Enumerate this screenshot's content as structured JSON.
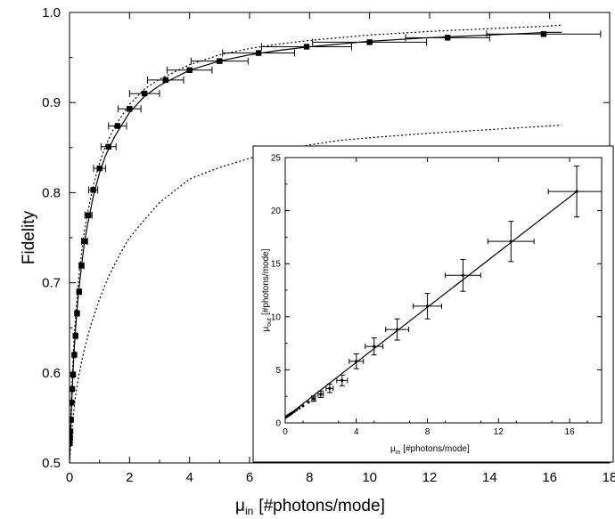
{
  "chart_data": [
    {
      "type": "scatter",
      "xlabel": "μ",
      "xlabel_sub": "in",
      "xlabel_rest": "[#photons/mode]",
      "ylabel": "Fidelity",
      "xlim": [
        0,
        18
      ],
      "ylim": [
        0.5,
        1.0
      ],
      "x_ticks": [
        "0",
        "2",
        "4",
        "6",
        "8",
        "10",
        "12",
        "14",
        "16",
        "18"
      ],
      "y_ticks": [
        "0.5",
        "0.6",
        "0.7",
        "0.8",
        "0.9",
        "1.0"
      ],
      "grid": false,
      "series": [
        {
          "kind": "points",
          "style": "filled-square",
          "x": [
            0.01,
            0.02,
            0.03,
            0.05,
            0.07,
            0.09,
            0.12,
            0.16,
            0.2,
            0.25,
            0.32,
            0.4,
            0.5,
            0.63,
            0.79,
            1.0,
            1.3,
            1.6,
            2.0,
            2.5,
            3.2,
            4.0,
            5.0,
            6.3,
            7.9,
            10.0,
            12.6,
            15.8
          ],
          "y": [
            0.522,
            0.528,
            0.535,
            0.548,
            0.567,
            0.582,
            0.598,
            0.62,
            0.641,
            0.666,
            0.69,
            0.719,
            0.746,
            0.775,
            0.803,
            0.827,
            0.851,
            0.874,
            0.893,
            0.91,
            0.925,
            0.936,
            0.946,
            0.955,
            0.962,
            0.967,
            0.972,
            0.976
          ],
          "xerr": [
            0.002,
            0.004,
            0.006,
            0.01,
            0.014,
            0.018,
            0.024,
            0.03,
            0.04,
            0.05,
            0.06,
            0.08,
            0.1,
            0.12,
            0.15,
            0.2,
            0.25,
            0.3,
            0.38,
            0.5,
            0.6,
            0.75,
            0.95,
            1.2,
            1.5,
            1.9,
            1.4,
            1.9
          ]
        },
        {
          "kind": "line",
          "style": "solid",
          "x": [
            0,
            0.05,
            0.1,
            0.15,
            0.2,
            0.3,
            0.4,
            0.5,
            0.6,
            0.8,
            1.0,
            1.2,
            1.5,
            2.0,
            2.5,
            3.0,
            4.0,
            5.0,
            6.0,
            7.0,
            8.0,
            10.0,
            12.0,
            14.0,
            16.0,
            16.4
          ],
          "y": [
            0.5,
            0.548,
            0.59,
            0.622,
            0.648,
            0.689,
            0.719,
            0.745,
            0.764,
            0.797,
            0.822,
            0.841,
            0.862,
            0.889,
            0.907,
            0.919,
            0.936,
            0.946,
            0.953,
            0.958,
            0.962,
            0.968,
            0.972,
            0.975,
            0.978,
            0.978
          ]
        },
        {
          "kind": "line",
          "style": "dotted",
          "x": [
            0,
            0.05,
            0.1,
            0.15,
            0.2,
            0.3,
            0.4,
            0.5,
            0.6,
            0.8,
            1.0,
            1.2,
            1.5,
            2.0,
            2.5,
            3.0,
            4.0,
            5.0,
            6.0,
            7.0,
            8.0,
            10.0,
            12.0,
            14.0,
            16.0,
            16.4
          ],
          "y": [
            0.5,
            0.56,
            0.602,
            0.636,
            0.662,
            0.703,
            0.733,
            0.758,
            0.777,
            0.809,
            0.833,
            0.852,
            0.873,
            0.898,
            0.915,
            0.926,
            0.942,
            0.953,
            0.96,
            0.965,
            0.969,
            0.975,
            0.979,
            0.982,
            0.985,
            0.986
          ]
        },
        {
          "kind": "line",
          "style": "dotted",
          "x": [
            0,
            0.1,
            0.2,
            0.3,
            0.4,
            0.5,
            0.7,
            1.0,
            1.3,
            1.7,
            2.0,
            2.5,
            3.0,
            4.0,
            5.0,
            6.0,
            7.0,
            8.0,
            9.0,
            10.0,
            12.0,
            14.0,
            16.0,
            16.4
          ],
          "y": [
            0.5,
            0.546,
            0.574,
            0.595,
            0.612,
            0.627,
            0.652,
            0.682,
            0.707,
            0.733,
            0.75,
            0.77,
            0.789,
            0.815,
            0.828,
            0.838,
            0.846,
            0.853,
            0.858,
            0.861,
            0.866,
            0.87,
            0.874,
            0.875
          ]
        }
      ]
    },
    {
      "type": "scatter",
      "role": "inset",
      "xlabel": "μ",
      "xlabel_sub": "in",
      "xlabel_rest": "[#photons/mode]",
      "ylabel": "μ",
      "ylabel_sub": "out",
      "ylabel_rest": "[#photons/mode]",
      "xlim": [
        0,
        17.8
      ],
      "ylim": [
        0,
        25
      ],
      "x_ticks": [
        "0",
        "4",
        "8",
        "12",
        "16"
      ],
      "y_ticks": [
        "0",
        "5",
        "10",
        "15",
        "20",
        "25"
      ],
      "series": [
        {
          "kind": "points",
          "style": "small-dot",
          "x": [
            0.01,
            0.02,
            0.03,
            0.05,
            0.07,
            0.09,
            0.12,
            0.16,
            0.2,
            0.25,
            0.32,
            0.4,
            0.5,
            0.63,
            0.79,
            1.0,
            1.3,
            1.6,
            2.0,
            2.5,
            3.2,
            4.0,
            5.0,
            6.3,
            8.0,
            10.0,
            12.7,
            16.4
          ],
          "y": [
            0.52,
            0.53,
            0.55,
            0.57,
            0.59,
            0.61,
            0.64,
            0.69,
            0.73,
            0.79,
            0.86,
            0.95,
            1.06,
            1.2,
            1.38,
            1.6,
            1.95,
            2.28,
            2.7,
            3.25,
            4.0,
            5.8,
            7.2,
            8.8,
            11.0,
            13.9,
            17.1,
            21.8
          ],
          "xerr": [
            0,
            0,
            0,
            0,
            0,
            0,
            0,
            0,
            0,
            0,
            0,
            0,
            0,
            0,
            0,
            0,
            0,
            0.1,
            0.15,
            0.2,
            0.3,
            0.4,
            0.5,
            0.65,
            0.8,
            1.0,
            1.3,
            1.6
          ],
          "yerr": [
            0,
            0,
            0,
            0,
            0,
            0,
            0,
            0,
            0,
            0,
            0,
            0,
            0,
            0,
            0,
            0,
            0,
            0.25,
            0.3,
            0.4,
            0.5,
            0.7,
            0.8,
            1.0,
            1.2,
            1.5,
            1.9,
            2.4
          ]
        },
        {
          "kind": "line",
          "style": "solid",
          "x": [
            0,
            16.4
          ],
          "y": [
            0.5,
            21.8
          ]
        }
      ]
    }
  ]
}
